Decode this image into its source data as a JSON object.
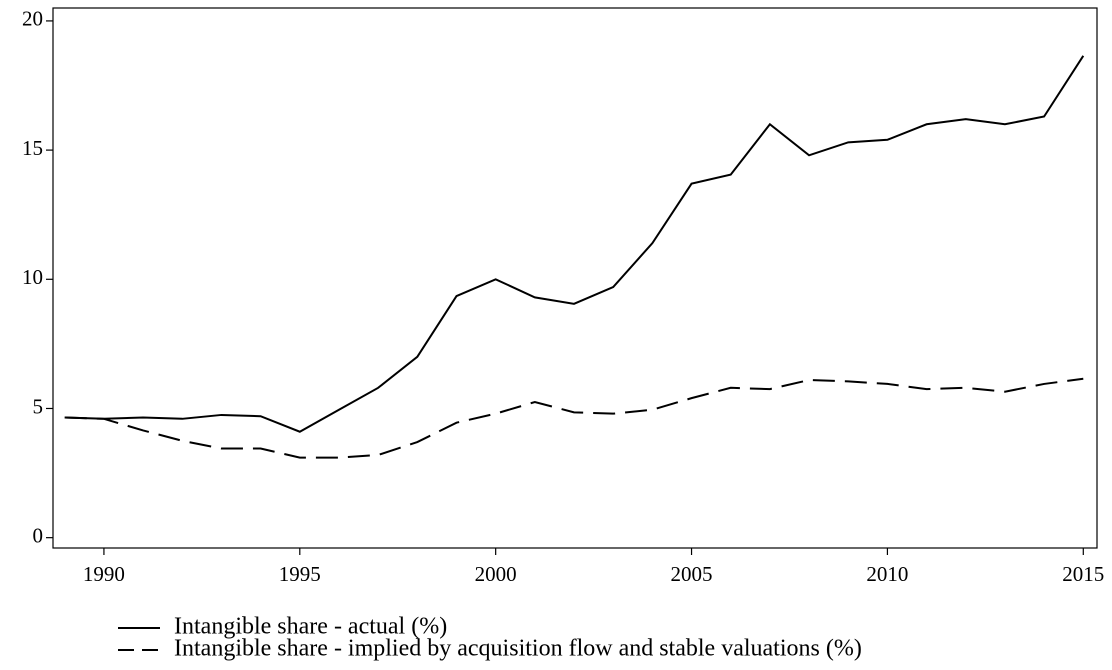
{
  "chart_data": {
    "type": "line",
    "x": [
      1989,
      1990,
      1991,
      1992,
      1993,
      1994,
      1995,
      1996,
      1997,
      1998,
      1999,
      2000,
      2001,
      2002,
      2003,
      2004,
      2005,
      2006,
      2007,
      2008,
      2009,
      2010,
      2011,
      2012,
      2013,
      2014,
      2015
    ],
    "series": [
      {
        "name": "Intangible share - actual (%)",
        "color": "#000000",
        "style": "solid",
        "values": [
          4.65,
          4.6,
          4.65,
          4.6,
          4.75,
          4.7,
          4.1,
          4.95,
          5.8,
          7.0,
          9.35,
          10.0,
          9.3,
          9.05,
          9.7,
          11.4,
          13.7,
          14.05,
          16.0,
          14.8,
          15.3,
          15.4,
          16.0,
          16.2,
          16.0,
          16.3,
          18.65
        ]
      },
      {
        "name": "Intangible share - implied by acquisition flow and stable valuations (%)",
        "color": "#000000",
        "style": "dashed",
        "values": [
          4.65,
          4.6,
          4.15,
          3.75,
          3.45,
          3.45,
          3.1,
          3.1,
          3.2,
          3.7,
          4.45,
          4.8,
          5.25,
          4.85,
          4.8,
          4.95,
          5.4,
          5.8,
          5.75,
          6.1,
          6.05,
          5.95,
          5.75,
          5.8,
          5.65,
          5.95,
          6.15
        ]
      }
    ],
    "xlim": [
      1988.7,
      2015.35
    ],
    "xticks": [
      1990,
      1995,
      2000,
      2005,
      2010,
      2015
    ],
    "ylim": [
      -0.4,
      20.5
    ],
    "yticks": [
      0,
      5,
      10,
      15,
      20
    ],
    "grid": false,
    "legend": "bottom-left"
  }
}
